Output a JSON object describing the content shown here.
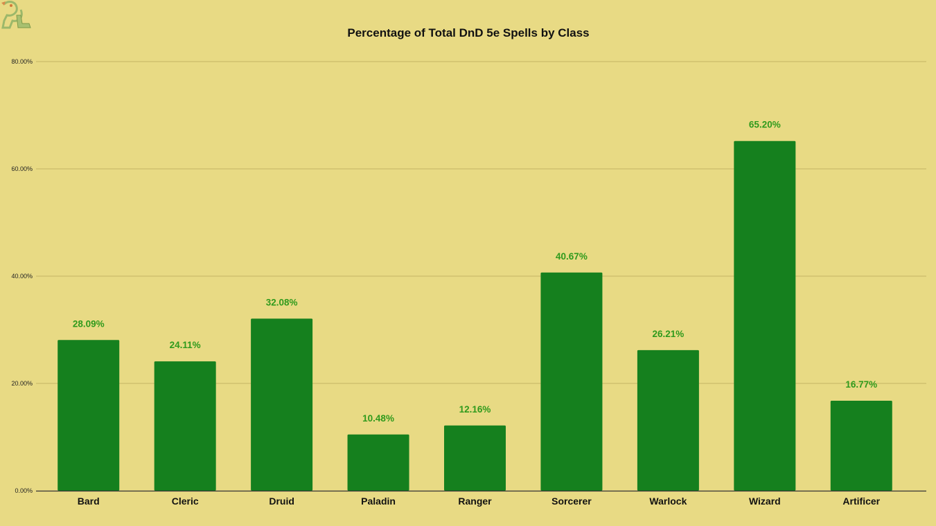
{
  "colors": {
    "background": "#e8da84",
    "bar": "#15801e",
    "data_label": "#2f9a1c",
    "gridline": "#c4b464",
    "axis": "#333333"
  },
  "logo": {
    "icon": "dragon-logo-icon",
    "text": "DL"
  },
  "chart_data": {
    "type": "bar",
    "title": "Percentage of Total DnD 5e Spells by Class",
    "xlabel": "",
    "ylabel": "",
    "categories": [
      "Bard",
      "Cleric",
      "Druid",
      "Paladin",
      "Ranger",
      "Sorcerer",
      "Warlock",
      "Wizard",
      "Artificer"
    ],
    "values": [
      28.09,
      24.11,
      32.08,
      10.48,
      12.16,
      40.67,
      26.21,
      65.2,
      16.77
    ],
    "data_labels": [
      "28.09%",
      "24.11%",
      "32.08%",
      "10.48%",
      "12.16%",
      "40.67%",
      "26.21%",
      "65.20%",
      "16.77%"
    ],
    "ylim": [
      0,
      80
    ],
    "yticks": [
      0,
      20,
      40,
      60,
      80
    ],
    "ytick_labels": [
      "0.00%",
      "20.00%",
      "40.00%",
      "60.00%",
      "80.00%"
    ],
    "grid": true,
    "legend": "none"
  }
}
